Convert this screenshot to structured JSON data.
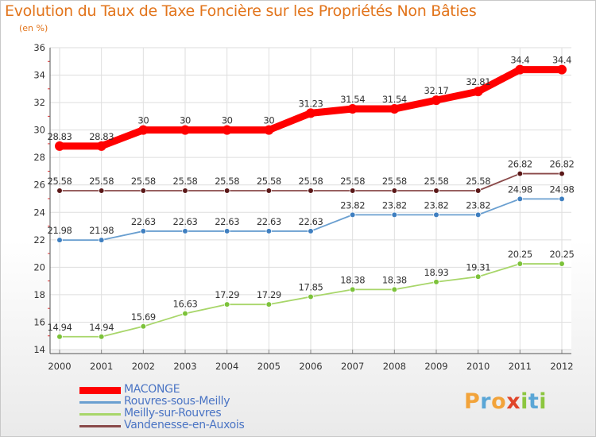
{
  "title": "Evolution du Taux de Taxe Foncière sur les Propriétés Non Bâties",
  "subtitle": "(en %)",
  "logo": {
    "letters": [
      {
        "ch": "P",
        "color": "#f2a33a"
      },
      {
        "ch": "r",
        "color": "#5aa6d6"
      },
      {
        "ch": "o",
        "color": "#f2a33a"
      },
      {
        "ch": "x",
        "color": "#e0452a"
      },
      {
        "ch": "i",
        "color": "#8cc63f"
      },
      {
        "ch": "t",
        "color": "#5aa6d6"
      },
      {
        "ch": "i",
        "color": "#8cc63f"
      }
    ]
  },
  "chart_data": {
    "type": "line",
    "title": "Evolution du Taux de Taxe Foncière sur les Propriétés Non Bâties",
    "ylabel": "(en %)",
    "xlabel": "",
    "x": [
      "2000",
      "2001",
      "2002",
      "2003",
      "2004",
      "2005",
      "2006",
      "2007",
      "2008",
      "2009",
      "2010",
      "2011",
      "2012"
    ],
    "ylim": [
      14,
      36
    ],
    "yticks": [
      14,
      16,
      18,
      20,
      22,
      24,
      26,
      28,
      30,
      32,
      34,
      36
    ],
    "grid": true,
    "legend_position": "bottom-left",
    "series": [
      {
        "name": "MACONGE",
        "color": "#ff0000",
        "marker_color": "#ff0000",
        "emphasis": "bold",
        "values": [
          28.83,
          28.83,
          30,
          30,
          30,
          30,
          31.23,
          31.54,
          31.54,
          32.17,
          32.81,
          34.4,
          34.4
        ],
        "labels": [
          "28.83",
          "28.83",
          "30",
          "30",
          "30",
          "30",
          "31.23",
          "31.54",
          "31.54",
          "32.17",
          "32.81",
          "34.4",
          "34.4"
        ]
      },
      {
        "name": "Rouvres-sous-Meilly",
        "color": "#6a9fd0",
        "marker_color": "#3f7fc0",
        "emphasis": "normal",
        "values": [
          21.98,
          21.98,
          22.63,
          22.63,
          22.63,
          22.63,
          22.63,
          23.82,
          23.82,
          23.82,
          23.82,
          24.98,
          24.98
        ],
        "labels": [
          "21.98",
          "21.98",
          "22.63",
          "22.63",
          "22.63",
          "22.63",
          "22.63",
          "23.82",
          "23.82",
          "23.82",
          "23.82",
          "24.98",
          "24.98"
        ]
      },
      {
        "name": "Meilly-sur-Rouvres",
        "color": "#a8d66a",
        "marker_color": "#7cc23a",
        "emphasis": "normal",
        "values": [
          14.94,
          14.94,
          15.69,
          16.63,
          17.29,
          17.29,
          17.85,
          18.38,
          18.38,
          18.93,
          19.31,
          20.25,
          20.25
        ],
        "labels": [
          "14.94",
          "14.94",
          "15.69",
          "16.63",
          "17.29",
          "17.29",
          "17.85",
          "18.38",
          "18.38",
          "18.93",
          "19.31",
          "20.25",
          "20.25"
        ]
      },
      {
        "name": "Vandenesse-en-Auxois",
        "color": "#8a4a4a",
        "marker_color": "#5a1818",
        "emphasis": "normal",
        "values": [
          25.58,
          25.58,
          25.58,
          25.58,
          25.58,
          25.58,
          25.58,
          25.58,
          25.58,
          25.58,
          25.58,
          26.82,
          26.82
        ],
        "labels": [
          "25.58",
          "25.58",
          "25.58",
          "25.58",
          "25.58",
          "25.58",
          "25.58",
          "25.58",
          "25.58",
          "25.58",
          "25.58",
          "26.82",
          "26.82"
        ]
      }
    ]
  }
}
